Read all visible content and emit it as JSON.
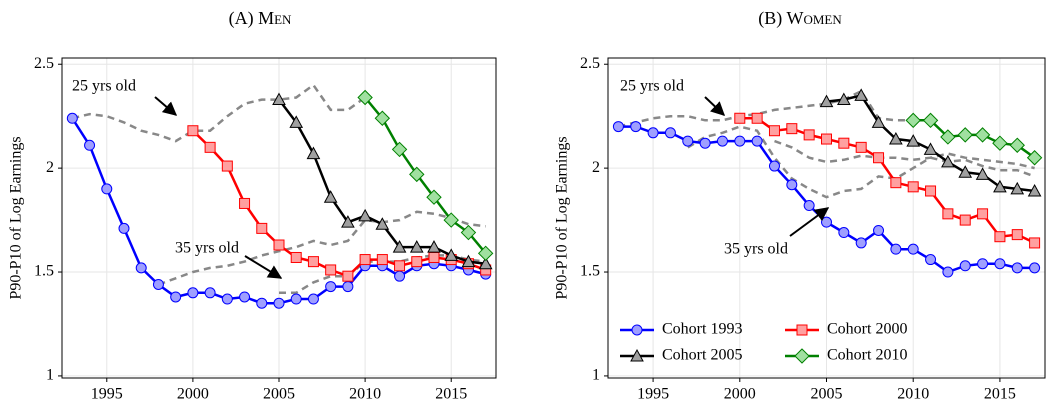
{
  "chart_data": [
    {
      "type": "line",
      "title": "(A) Men",
      "y_label": "P90-P10 of Log Earnings",
      "x": [
        1993,
        1994,
        1995,
        1996,
        1997,
        1998,
        1999,
        2000,
        2001,
        2002,
        2003,
        2004,
        2005,
        2006,
        2007,
        2008,
        2009,
        2010,
        2011,
        2012,
        2013,
        2014,
        2015,
        2016,
        2017
      ],
      "xlim": [
        1992.4,
        2017.6
      ],
      "xticks": [
        1995,
        2000,
        2005,
        2010,
        2015
      ],
      "ylim": [
        0.99,
        2.53
      ],
      "yticks": [
        1,
        1.5,
        2,
        2.5
      ],
      "grid": true,
      "annotations": [
        "25 yrs old",
        "35 yrs old"
      ],
      "series": [
        {
          "color": "#0000ff",
          "marker_fill": "#9f9fff",
          "marker": "circle",
          "values": [
            2.24,
            2.11,
            1.9,
            1.71,
            1.52,
            1.44,
            1.38,
            1.4,
            1.4,
            1.37,
            1.38,
            1.35,
            1.35,
            1.37,
            1.37,
            1.43,
            1.43,
            1.53,
            1.53,
            1.48,
            1.53,
            1.54,
            1.53,
            1.51,
            1.49
          ]
        },
        {
          "color": "#ff0000",
          "marker_fill": "#ffa0a0",
          "marker": "square",
          "values": [
            null,
            null,
            null,
            null,
            null,
            null,
            null,
            2.18,
            2.1,
            2.01,
            1.83,
            1.71,
            1.63,
            1.57,
            1.55,
            1.51,
            1.48,
            1.56,
            1.56,
            1.53,
            1.55,
            1.57,
            1.56,
            1.54,
            1.51
          ]
        },
        {
          "color": "#000000",
          "marker_fill": "#a0a0a0",
          "marker": "triangle",
          "values": [
            null,
            null,
            null,
            null,
            null,
            null,
            null,
            null,
            null,
            null,
            null,
            null,
            2.33,
            2.22,
            2.07,
            1.86,
            1.74,
            1.77,
            1.73,
            1.62,
            1.62,
            1.62,
            1.58,
            1.55,
            1.54
          ]
        },
        {
          "color": "#008000",
          "marker_fill": "#a0e0a0",
          "marker": "diamond",
          "values": [
            null,
            null,
            null,
            null,
            null,
            null,
            null,
            null,
            null,
            null,
            null,
            null,
            null,
            null,
            null,
            null,
            null,
            2.34,
            2.24,
            2.09,
            1.97,
            1.86,
            1.75,
            1.69,
            1.59
          ]
        },
        {
          "color": "#888888",
          "dashed": true,
          "values": [
            2.24,
            2.26,
            2.25,
            2.22,
            2.18,
            2.16,
            2.13,
            2.18,
            2.18,
            2.25,
            2.31,
            2.33,
            2.33,
            2.34,
            2.4,
            2.28,
            2.28,
            2.34,
            null,
            null,
            null,
            null,
            null,
            null,
            null
          ]
        },
        {
          "color": "#888888",
          "dashed": true,
          "values": [
            null,
            null,
            null,
            null,
            null,
            1.44,
            1.47,
            1.5,
            1.52,
            1.53,
            1.55,
            1.58,
            1.6,
            1.62,
            1.65,
            1.63,
            1.65,
            1.75,
            1.74,
            1.75,
            1.79,
            1.78,
            1.76,
            1.73,
            1.72
          ]
        },
        {
          "color": "#888888",
          "dashed": true,
          "values": [
            null,
            null,
            null,
            null,
            null,
            null,
            null,
            null,
            null,
            null,
            null,
            null,
            1.4,
            1.4,
            1.45,
            1.48,
            1.48,
            1.55,
            1.55,
            1.55,
            1.57,
            1.58,
            1.58,
            1.56,
            1.55
          ]
        }
      ]
    },
    {
      "type": "line",
      "title": "(B) Women",
      "y_label": "P90-P10 of Log Earnings",
      "x": [
        1993,
        1994,
        1995,
        1996,
        1997,
        1998,
        1999,
        2000,
        2001,
        2002,
        2003,
        2004,
        2005,
        2006,
        2007,
        2008,
        2009,
        2010,
        2011,
        2012,
        2013,
        2014,
        2015,
        2016,
        2017
      ],
      "xlim": [
        1992.4,
        2017.6
      ],
      "xticks": [
        1995,
        2000,
        2005,
        2010,
        2015
      ],
      "ylim": [
        0.99,
        2.53
      ],
      "yticks": [
        1,
        1.5,
        2,
        2.5
      ],
      "grid": true,
      "legend": "lower left",
      "annotations": [
        "25 yrs old",
        "35 yrs old"
      ],
      "series": [
        {
          "name": "Cohort 1993",
          "color": "#0000ff",
          "marker_fill": "#9f9fff",
          "marker": "circle",
          "values": [
            2.2,
            2.2,
            2.17,
            2.17,
            2.13,
            2.12,
            2.13,
            2.13,
            2.13,
            2.01,
            1.92,
            1.82,
            1.74,
            1.69,
            1.64,
            1.7,
            1.61,
            1.61,
            1.56,
            1.5,
            1.53,
            1.54,
            1.54,
            1.52,
            1.52
          ]
        },
        {
          "name": "Cohort 2000",
          "color": "#ff0000",
          "marker_fill": "#ffa0a0",
          "marker": "square",
          "values": [
            null,
            null,
            null,
            null,
            null,
            null,
            null,
            2.24,
            2.24,
            2.18,
            2.19,
            2.16,
            2.14,
            2.12,
            2.1,
            2.05,
            1.93,
            1.91,
            1.89,
            1.78,
            1.75,
            1.78,
            1.67,
            1.68,
            1.64
          ]
        },
        {
          "name": "Cohort 2005",
          "color": "#000000",
          "marker_fill": "#a0a0a0",
          "marker": "triangle",
          "values": [
            null,
            null,
            null,
            null,
            null,
            null,
            null,
            null,
            null,
            null,
            null,
            null,
            2.32,
            2.33,
            2.35,
            2.22,
            2.14,
            2.13,
            2.09,
            2.03,
            1.98,
            1.97,
            1.91,
            1.9,
            1.89
          ]
        },
        {
          "name": "Cohort 2010",
          "color": "#008000",
          "marker_fill": "#a0e0a0",
          "marker": "diamond",
          "values": [
            null,
            null,
            null,
            null,
            null,
            null,
            null,
            null,
            null,
            null,
            null,
            null,
            null,
            null,
            null,
            null,
            null,
            2.23,
            2.23,
            2.15,
            2.16,
            2.16,
            2.12,
            2.11,
            2.05
          ]
        },
        {
          "color": "#888888",
          "dashed": true,
          "values": [
            2.2,
            2.22,
            2.24,
            2.25,
            2.25,
            2.23,
            2.23,
            2.25,
            2.26,
            2.28,
            2.29,
            2.3,
            2.31,
            2.33,
            2.37,
            2.24,
            2.23,
            2.23,
            null,
            null,
            null,
            null,
            null,
            null,
            null
          ]
        },
        {
          "color": "#888888",
          "dashed": true,
          "values": [
            null,
            null,
            null,
            null,
            2.1,
            2.15,
            2.17,
            2.2,
            2.18,
            2.05,
            1.95,
            1.9,
            1.86,
            1.89,
            1.9,
            1.96,
            1.95,
            2.0,
            2.05,
            2.03,
            2.04,
            2.01,
            1.99,
            1.99,
            1.96
          ]
        },
        {
          "color": "#888888",
          "dashed": true,
          "values": [
            null,
            null,
            null,
            null,
            null,
            null,
            null,
            null,
            null,
            2.13,
            2.1,
            2.05,
            2.03,
            2.04,
            2.06,
            2.05,
            2.05,
            2.04,
            2.05,
            2.07,
            2.05,
            2.04,
            2.03,
            2.02,
            2.0
          ]
        }
      ]
    }
  ]
}
